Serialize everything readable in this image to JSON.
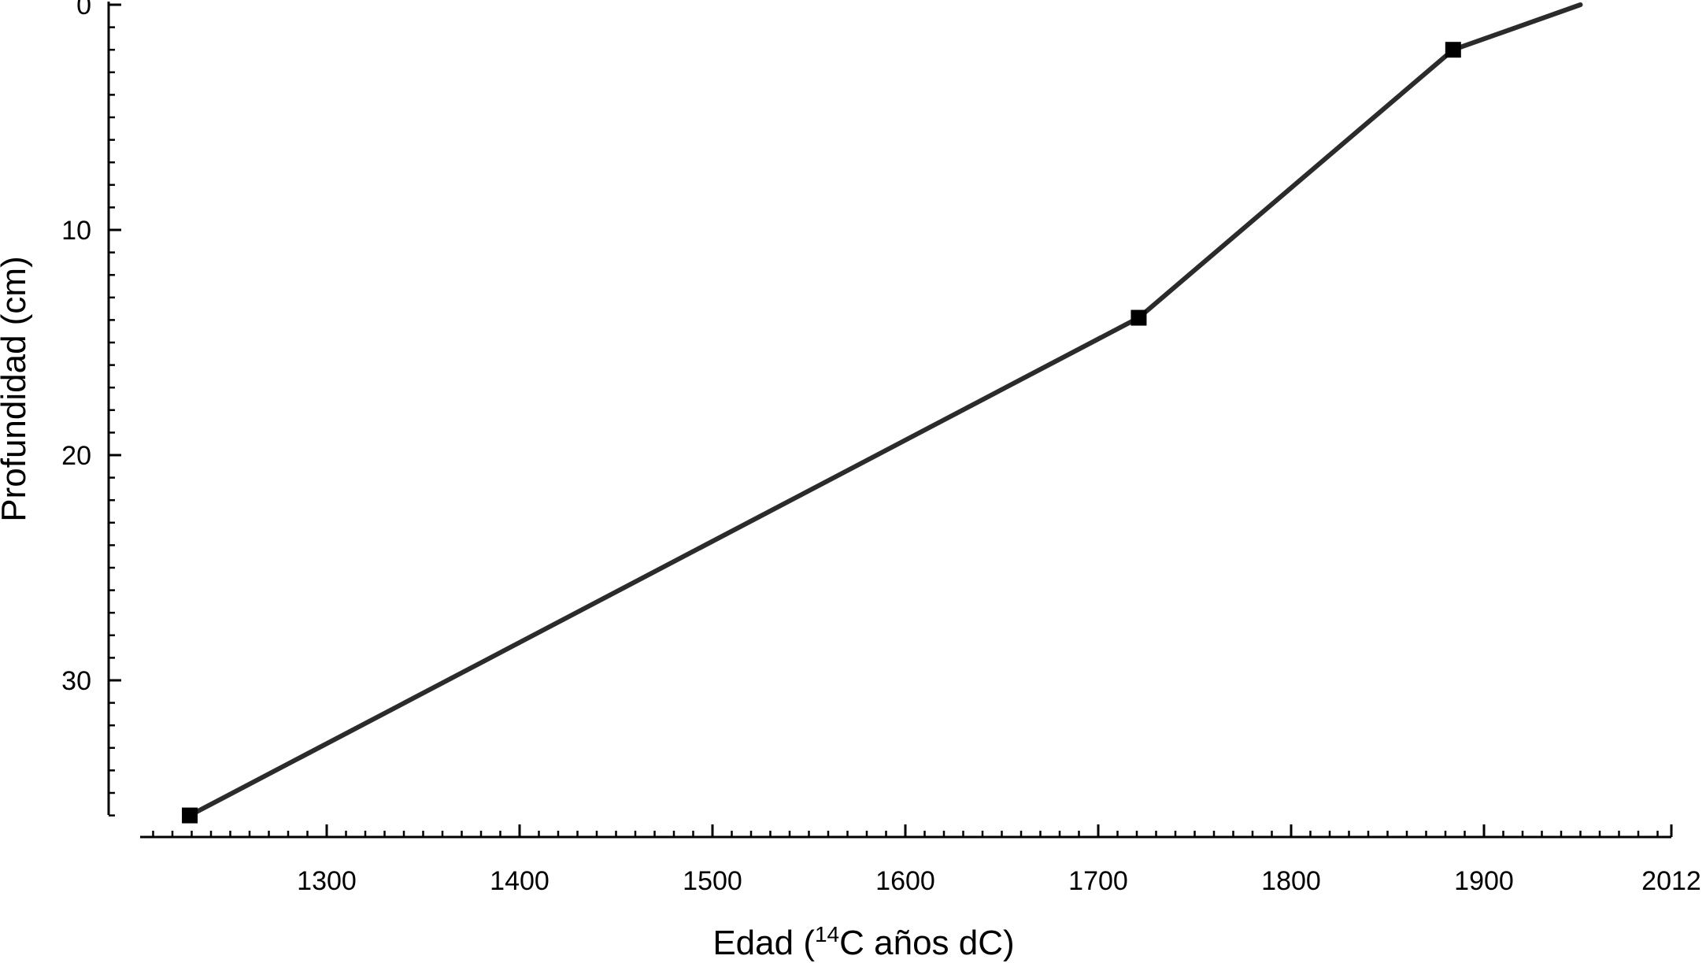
{
  "chart_data": {
    "type": "line",
    "xlabel_prefix": "Edad (",
    "xlabel_sup": "14",
    "xlabel_suffix": "C  años dC)",
    "ylabel": "Profundidad (cm)",
    "xlim": [
      1203,
      2012
    ],
    "ylim": [
      0,
      36
    ],
    "y_inverted": true,
    "x_ticks": [
      1300,
      1400,
      1500,
      1600,
      1700,
      1800,
      1900,
      2012
    ],
    "x_tick_labels": [
      "1300",
      "1400",
      "1500",
      "1600",
      "1700",
      "1800",
      "1900",
      "2012"
    ],
    "y_ticks": [
      0,
      10,
      20,
      30
    ],
    "y_tick_labels": [
      "0",
      "10",
      "20",
      "30"
    ],
    "grid": false,
    "series": [
      {
        "x": [
          1229,
          1721,
          1884,
          1950
        ],
        "y": [
          36,
          13.9,
          2,
          0
        ],
        "markers": [
          true,
          true,
          true,
          false
        ],
        "color": "#2b2b2b"
      }
    ]
  }
}
